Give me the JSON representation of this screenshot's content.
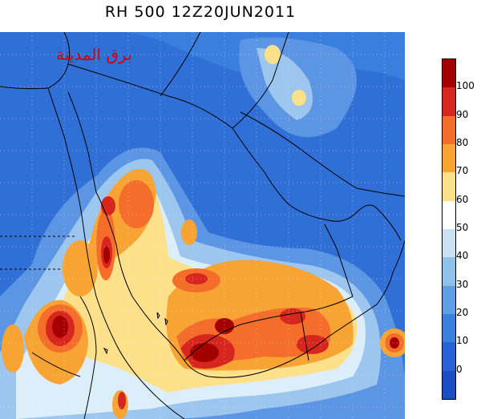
{
  "title": "RH 500  12Z20JUN2011",
  "watermark": "برق المدينة",
  "colorbar": {
    "labels": [
      "100",
      "90",
      "80",
      "70",
      "60",
      "50",
      "40",
      "30",
      "20",
      "10",
      "0"
    ],
    "colors": [
      "#a50000",
      "#d7261e",
      "#f46d2b",
      "#f8a435",
      "#fde08a",
      "#ffffff",
      "#c9e1f2",
      "#8fc1ea",
      "#5f9de6",
      "#3a7ede",
      "#2563d6",
      "#1a4fc4"
    ]
  },
  "map_colors": {
    "ocean_blue": "#2f6fd6",
    "mid_blue": "#5b95e3",
    "light_blue": "#9cc6ee",
    "pale": "#dceefa",
    "yellow": "#fde08a",
    "orange": "#f8a435",
    "dark_orange": "#f46d2b",
    "red": "#d7261e",
    "dark_red": "#a50000",
    "borders": "#000000"
  }
}
